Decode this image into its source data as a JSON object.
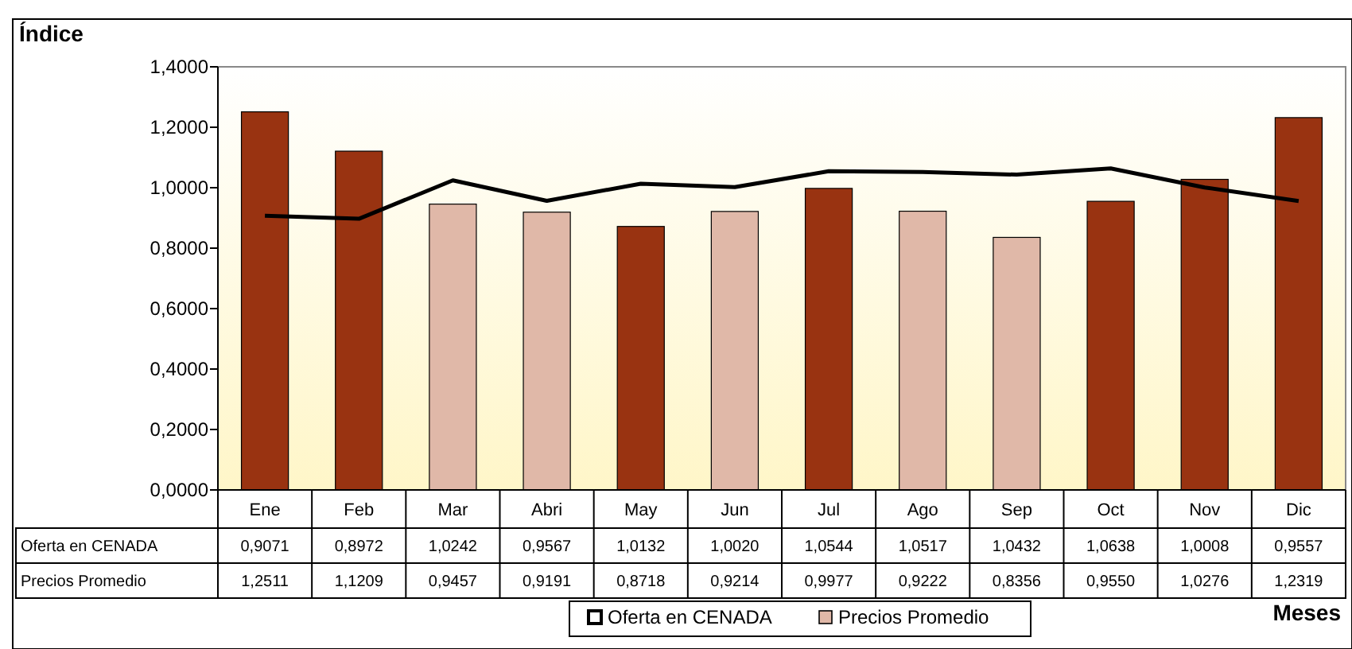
{
  "chart_data": {
    "type": "bar",
    "ylabel": "Índice",
    "xlabel": "Meses",
    "categories": [
      "Ene",
      "Feb",
      "Mar",
      "Abri",
      "May",
      "Jun",
      "Jul",
      "Ago",
      "Sep",
      "Oct",
      "Nov",
      "Dic"
    ],
    "series": [
      {
        "name": "Oferta en CENADA",
        "type": "line",
        "color": "#000000",
        "values": [
          0.9071,
          0.8972,
          1.0242,
          0.9567,
          1.0132,
          1.002,
          1.0544,
          1.0517,
          1.0432,
          1.0638,
          1.0008,
          0.9557
        ],
        "value_labels": [
          "0,9071",
          "0,8972",
          "1,0242",
          "0,9567",
          "1,0132",
          "1,0020",
          "1,0544",
          "1,0517",
          "1,0432",
          "1,0638",
          "1,0008",
          "0,9557"
        ]
      },
      {
        "name": "Precios Promedio",
        "color": "#e0b8a8",
        "colors": [
          "#993311",
          "#993311",
          "#e0b8a8",
          "#e0b8a8",
          "#993311",
          "#e0b8a8",
          "#993311",
          "#e0b8a8",
          "#e0b8a8",
          "#993311",
          "#993311",
          "#993311"
        ],
        "values": [
          1.2511,
          1.1209,
          0.9457,
          0.9191,
          0.8718,
          0.9214,
          0.9977,
          0.9222,
          0.8356,
          0.955,
          1.0276,
          1.2319
        ],
        "value_labels": [
          "1,2511",
          "1,1209",
          "0,9457",
          "0,9191",
          "0,8718",
          "0,9214",
          "0,9977",
          "0,9222",
          "0,8356",
          "0,9550",
          "1,0276",
          "1,2319"
        ]
      }
    ],
    "ylim": [
      0,
      1.4
    ],
    "yticks": [
      {
        "value": 0,
        "label": "0,0000"
      },
      {
        "value": 0.2,
        "label": "0,2000"
      },
      {
        "value": 0.4,
        "label": "0,4000"
      },
      {
        "value": 0.6,
        "label": "0,6000"
      },
      {
        "value": 0.8,
        "label": "0,8000"
      },
      {
        "value": 1,
        "label": "1,0000"
      },
      {
        "value": 1.2,
        "label": "1,2000"
      },
      {
        "value": 1.4,
        "label": "1,4000"
      }
    ],
    "legend": "bottom",
    "grid": false,
    "marker": "none"
  }
}
